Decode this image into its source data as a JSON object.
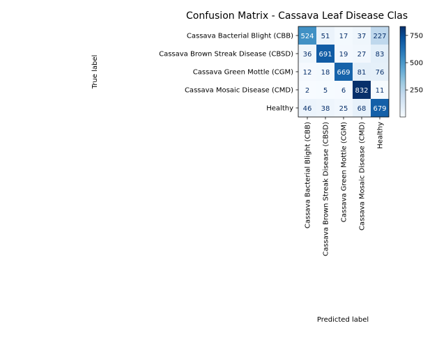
{
  "chart_data": {
    "type": "heatmap",
    "title": "Confusion Matrix - Cassava Leaf Disease Clas",
    "xlabel": "Predicted label",
    "ylabel": "True label",
    "row_labels": [
      "Cassava Bacterial Blight (CBB)",
      "Cassava Brown Streak Disease (CBSD)",
      "Cassava Green Mottle (CGM)",
      "Cassava Mosaic Disease (CMD)",
      "Healthy"
    ],
    "col_labels": [
      "Cassava Bacterial Blight (CBB)",
      "Cassava Brown Streak Disease (CBSD)",
      "Cassava Green Mottle (CGM)",
      "Cassava Mosaic Disease (CMD)",
      "Healthy"
    ],
    "values": [
      [
        524,
        51,
        17,
        37,
        227
      ],
      [
        36,
        691,
        19,
        27,
        83
      ],
      [
        12,
        18,
        669,
        81,
        76
      ],
      [
        2,
        5,
        6,
        832,
        11
      ],
      [
        46,
        38,
        25,
        68,
        679
      ]
    ],
    "colormap": "Blues",
    "color_range": [
      2,
      832
    ],
    "colorbar_ticks": [
      "250",
      "500",
      "750"
    ],
    "colorbar_tick_values": [
      250,
      500,
      750
    ],
    "low_text_color": "#08306b",
    "high_text_color": "#ffffff",
    "grid": false
  }
}
